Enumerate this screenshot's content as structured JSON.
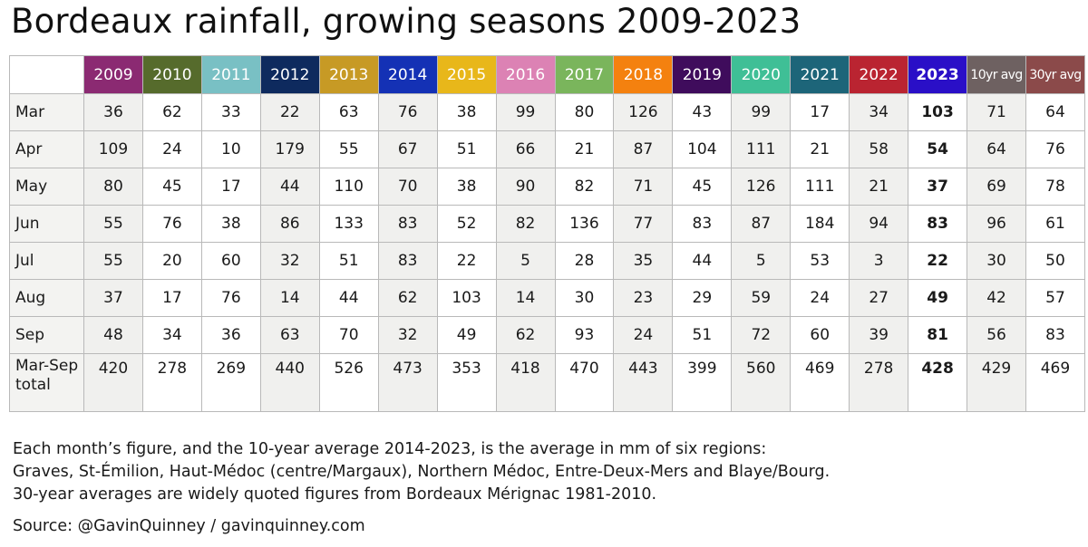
{
  "title": "Bordeaux rainfall, growing seasons 2009-2023",
  "chart_data": {
    "type": "table",
    "title": "Bordeaux rainfall, growing seasons 2009-2023",
    "columns": [
      {
        "label": "2009",
        "color": "#8b2a72"
      },
      {
        "label": "2010",
        "color": "#566b2c"
      },
      {
        "label": "2011",
        "color": "#79c0c4"
      },
      {
        "label": "2012",
        "color": "#0e2a5e"
      },
      {
        "label": "2013",
        "color": "#c79a25"
      },
      {
        "label": "2014",
        "color": "#1431b5"
      },
      {
        "label": "2015",
        "color": "#e8b71a"
      },
      {
        "label": "2016",
        "color": "#dc82b4"
      },
      {
        "label": "2017",
        "color": "#7ab55c"
      },
      {
        "label": "2018",
        "color": "#f4810f"
      },
      {
        "label": "2019",
        "color": "#3f0c5c"
      },
      {
        "label": "2020",
        "color": "#3fbf96"
      },
      {
        "label": "2021",
        "color": "#1d6579"
      },
      {
        "label": "2022",
        "color": "#ba2431"
      },
      {
        "label": "2023",
        "color": "#2a0fc7",
        "bold": true
      },
      {
        "label": "10yr avg",
        "color": "#6e6161",
        "avg": true
      },
      {
        "label": "30yr avg",
        "color": "#8b4a4a",
        "avg": true
      }
    ],
    "rows": [
      {
        "label": "Mar",
        "values": [
          "36",
          "62",
          "33",
          "22",
          "63",
          "76",
          "38",
          "99",
          "80",
          "126",
          "43",
          "99",
          "17",
          "34",
          "103",
          "71",
          "64"
        ]
      },
      {
        "label": "Apr",
        "values": [
          "109",
          "24",
          "10",
          "179",
          "55",
          "67",
          "51",
          "66",
          "21",
          "87",
          "104",
          "111",
          "21",
          "58",
          "54",
          "64",
          "76"
        ]
      },
      {
        "label": "May",
        "values": [
          "80",
          "45",
          "17",
          "44",
          "110",
          "70",
          "38",
          "90",
          "82",
          "71",
          "45",
          "126",
          "111",
          "21",
          "37",
          "69",
          "78"
        ]
      },
      {
        "label": "Jun",
        "values": [
          "55",
          "76",
          "38",
          "86",
          "133",
          "83",
          "52",
          "82",
          "136",
          "77",
          "83",
          "87",
          "184",
          "94",
          "83",
          "96",
          "61"
        ]
      },
      {
        "label": "Jul",
        "values": [
          "55",
          "20",
          "60",
          "32",
          "51",
          "83",
          "22",
          "5",
          "28",
          "35",
          "44",
          "5",
          "53",
          "3",
          "22",
          "30",
          "50"
        ]
      },
      {
        "label": "Aug",
        "values": [
          "37",
          "17",
          "76",
          "14",
          "44",
          "62",
          "103",
          "14",
          "30",
          "23",
          "29",
          "59",
          "24",
          "27",
          "49",
          "42",
          "57"
        ]
      },
      {
        "label": "Sep",
        "values": [
          "48",
          "34",
          "36",
          "63",
          "70",
          "32",
          "49",
          "62",
          "93",
          "24",
          "51",
          "72",
          "60",
          "39",
          "81",
          "56",
          "83"
        ]
      }
    ],
    "total_row": {
      "label": "Mar-Sep total",
      "values": [
        "420",
        "278",
        "269",
        "440",
        "526",
        "473",
        "353",
        "418",
        "470",
        "443",
        "399",
        "560",
        "469",
        "278",
        "428",
        "429",
        "469"
      ]
    },
    "shaded_columns": [
      "2009",
      "2012",
      "2014",
      "2016",
      "2018",
      "2020",
      "2022",
      "10yr avg"
    ]
  },
  "notes": [
    "Each month’s figure, and the 10-year average 2014-2023, is the average in mm of six regions:",
    "Graves, St-Émilion, Haut-Médoc (centre/Margaux), Northern Médoc, Entre-Deux-Mers and Blaye/Bourg.",
    "30-year averages are widely quoted figures from Bordeaux Mérignac 1981-2010."
  ],
  "source": "Source: @GavinQuinney / gavinquinney.com"
}
